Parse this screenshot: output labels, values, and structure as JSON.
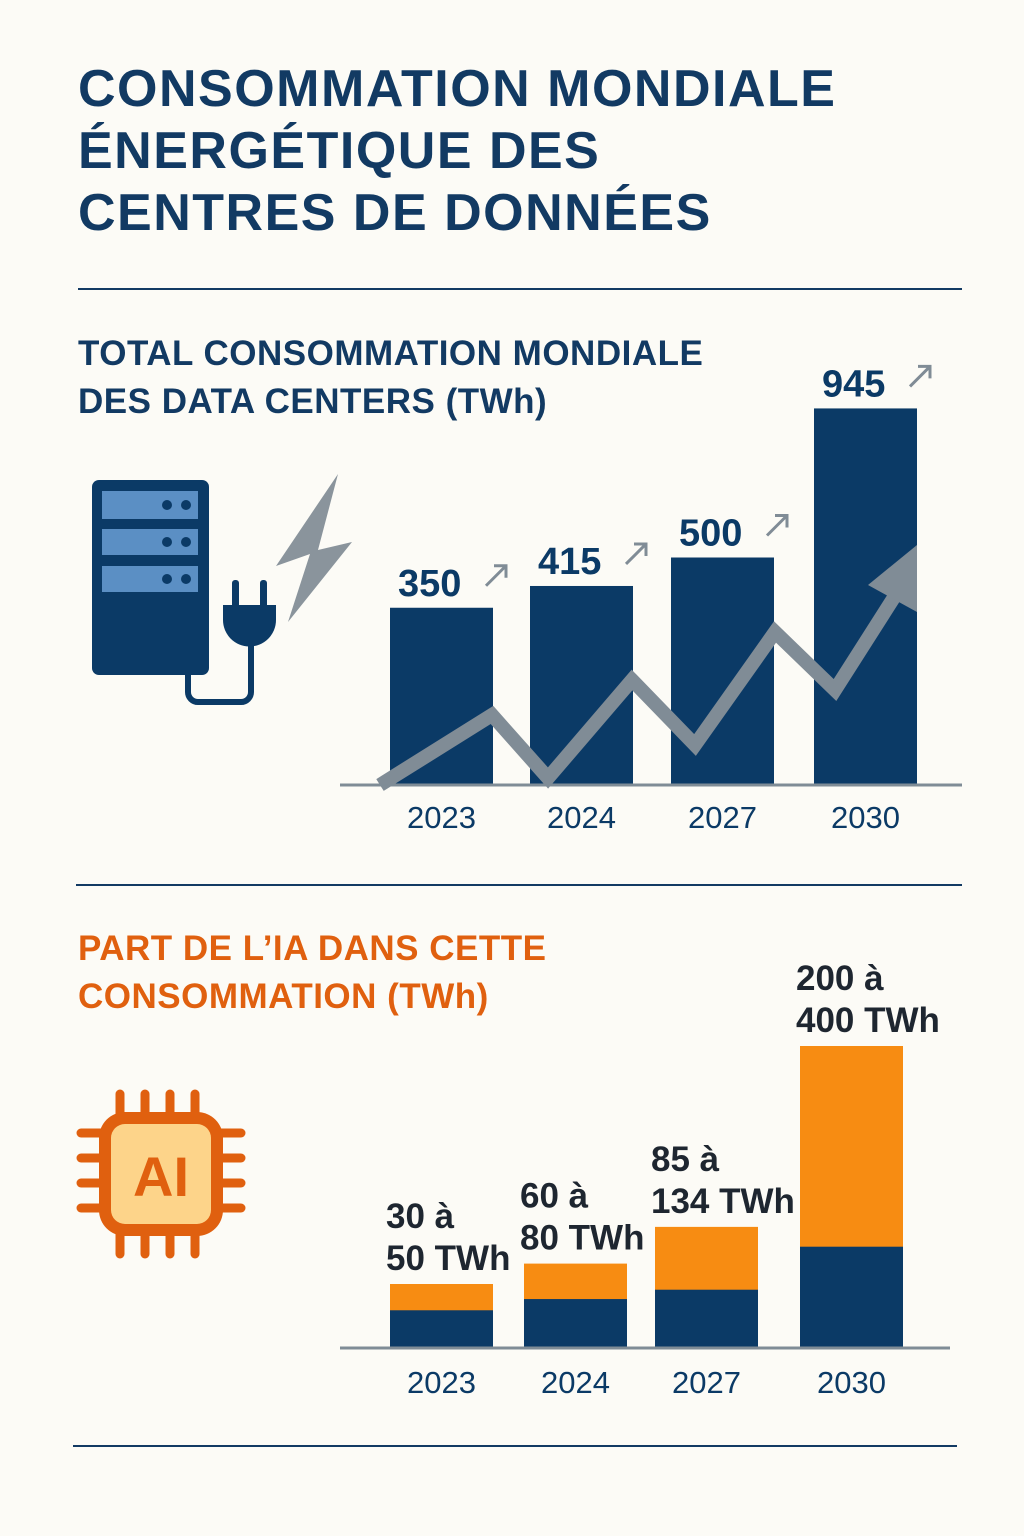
{
  "header": {
    "title_lines": [
      "CONSOMMATION MONDIALE",
      "ÉNERGÉTIQUE DES",
      "CENTRES DE DONNÉES"
    ]
  },
  "colors": {
    "navy": "#0b3a66",
    "orange": "#f78c12",
    "orange_title": "#e0600f",
    "gray_trend": "#808c96",
    "background": "#fcfbf6"
  },
  "icons": [
    "server-icon",
    "power-plug-icon",
    "lightning-icon",
    "ai-chip-icon",
    "trend-arrow-icon"
  ],
  "chart_data": [
    {
      "type": "bar",
      "title_lines": [
        "TOTAL CONSOMMATION MONDIALE",
        "DES DATA CENTERS (TWh)"
      ],
      "categories": [
        "2023",
        "2024",
        "2027",
        "2030"
      ],
      "values": [
        350,
        415,
        500,
        945
      ],
      "value_labels": [
        "350",
        "415",
        "500",
        "945"
      ],
      "unit": "TWh",
      "trend_arrow": "up",
      "grid": false
    },
    {
      "type": "bar",
      "title_lines": [
        "PART DE L’IA DANS CETTE",
        "CONSOMMATION (TWh)"
      ],
      "categories": [
        "2023",
        "2024",
        "2027",
        "2030"
      ],
      "series": [
        {
          "values": [
            30,
            60,
            85,
            200
          ]
        },
        {
          "values": [
            50,
            80,
            134,
            400
          ]
        }
      ],
      "value_labels": [
        [
          "30 à",
          "50 TWh"
        ],
        [
          "60 à",
          "80 TWh"
        ],
        [
          "85 à",
          "134 TWh"
        ],
        [
          "200 à",
          "400 TWh"
        ]
      ],
      "unit": "TWh",
      "stacked_range": true,
      "grid": false
    }
  ]
}
